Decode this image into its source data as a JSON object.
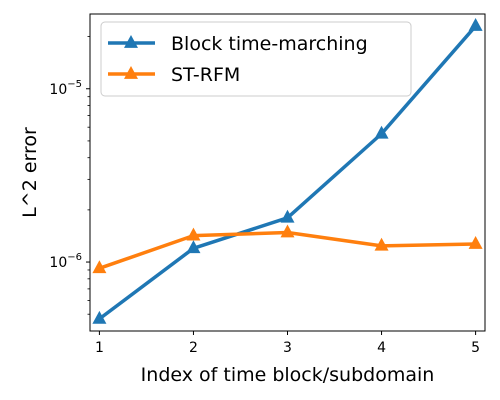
{
  "chart_data": {
    "type": "line",
    "title": "",
    "xlabel": "Index of time block/subdomain",
    "ylabel": "L^2 error",
    "yscale": "log",
    "xlim": [
      0.9,
      5.1
    ],
    "ylim": [
      4e-07,
      2.7e-05
    ],
    "x": [
      1,
      2,
      3,
      4,
      5
    ],
    "xticks": [
      "1",
      "2",
      "3",
      "4",
      "5"
    ],
    "yticks": [
      {
        "value": 1e-06,
        "base": "10",
        "exp": "−6"
      },
      {
        "value": 1e-05,
        "base": "10",
        "exp": "−5"
      }
    ],
    "grid": false,
    "legend_position": "top-left",
    "series": [
      {
        "name": "Block time-marching",
        "color": "#1f77b4",
        "marker": "triangle-up",
        "values": [
          4.7e-07,
          1.2e-06,
          1.8e-06,
          5.5e-06,
          2.3e-05
        ]
      },
      {
        "name": "ST-RFM",
        "color": "#ff7f0e",
        "marker": "triangle-up",
        "values": [
          9.2e-07,
          1.42e-06,
          1.48e-06,
          1.24e-06,
          1.27e-06
        ]
      }
    ]
  }
}
